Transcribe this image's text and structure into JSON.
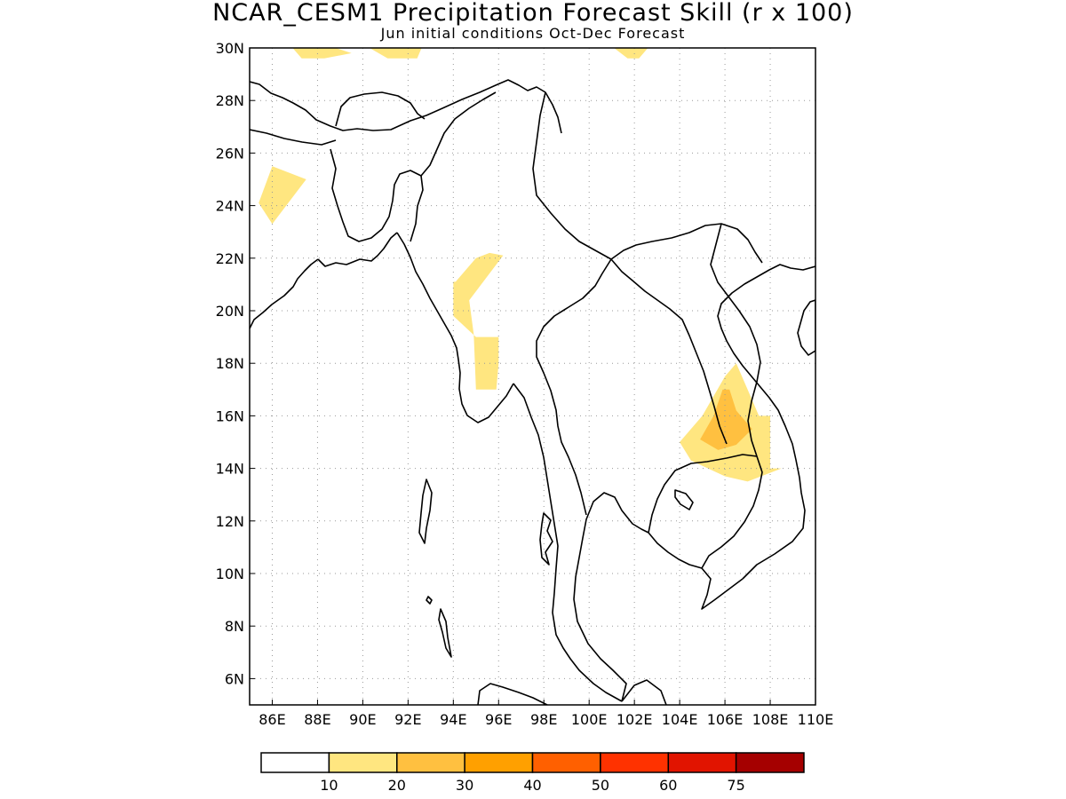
{
  "title": "NCAR_CESM1 Precipitation Forecast Skill (r x 100)",
  "subtitle": "Jun initial conditions  Oct-Dec Forecast",
  "map": {
    "lon_range": [
      85,
      110
    ],
    "lat_range": [
      5,
      30
    ],
    "lat_ticks": [
      {
        "value": 6,
        "label": "6N"
      },
      {
        "value": 8,
        "label": "8N"
      },
      {
        "value": 10,
        "label": "10N"
      },
      {
        "value": 12,
        "label": "12N"
      },
      {
        "value": 14,
        "label": "14N"
      },
      {
        "value": 16,
        "label": "16N"
      },
      {
        "value": 18,
        "label": "18N"
      },
      {
        "value": 20,
        "label": "20N"
      },
      {
        "value": 22,
        "label": "22N"
      },
      {
        "value": 24,
        "label": "24N"
      },
      {
        "value": 26,
        "label": "26N"
      },
      {
        "value": 28,
        "label": "28N"
      },
      {
        "value": 30,
        "label": "30N"
      }
    ],
    "lon_ticks": [
      {
        "value": 86,
        "label": "86E"
      },
      {
        "value": 88,
        "label": "88E"
      },
      {
        "value": 90,
        "label": "90E"
      },
      {
        "value": 92,
        "label": "92E"
      },
      {
        "value": 94,
        "label": "94E"
      },
      {
        "value": 96,
        "label": "96E"
      },
      {
        "value": 98,
        "label": "98E"
      },
      {
        "value": 100,
        "label": "100E"
      },
      {
        "value": 102,
        "label": "102E"
      },
      {
        "value": 104,
        "label": "104E"
      },
      {
        "value": 106,
        "label": "106E"
      },
      {
        "value": 108,
        "label": "108E"
      },
      {
        "value": 110,
        "label": "110E"
      }
    ],
    "grid": "dotted",
    "skill_regions": [
      {
        "level": "10-20",
        "color": "#ffe680",
        "points": [
          [
            86.9,
            30
          ],
          [
            88.8,
            30
          ],
          [
            89.5,
            29.8
          ],
          [
            88.3,
            29.6
          ],
          [
            87.3,
            29.6
          ]
        ]
      },
      {
        "level": "10-20",
        "color": "#ffe680",
        "points": [
          [
            90.3,
            30
          ],
          [
            92.6,
            30
          ],
          [
            92.4,
            29.6
          ],
          [
            91.1,
            29.6
          ]
        ]
      },
      {
        "level": "10-20",
        "color": "#ffe680",
        "points": [
          [
            101.1,
            30
          ],
          [
            102.6,
            30
          ],
          [
            102.2,
            29.6
          ],
          [
            101.7,
            29.6
          ]
        ]
      },
      {
        "level": "10-20",
        "color": "#ffe680",
        "points": [
          [
            86.0,
            25.5
          ],
          [
            87.5,
            25
          ],
          [
            86.0,
            23.3
          ],
          [
            85.4,
            24.1
          ]
        ]
      },
      {
        "level": "10-20",
        "color": "#ffe680",
        "points": [
          [
            93.3,
            21.1
          ],
          [
            94.1,
            21.1
          ],
          [
            95.0,
            22
          ],
          [
            95.6,
            22.2
          ],
          [
            96.2,
            22.1
          ],
          [
            94.7,
            20.4
          ],
          [
            94.9,
            19.1
          ],
          [
            95.0,
            17
          ],
          [
            95.9,
            17
          ],
          [
            96.0,
            18
          ],
          [
            96.6,
            18
          ],
          [
            96.0,
            18
          ],
          [
            96.0,
            19
          ],
          [
            95.0,
            19
          ],
          [
            94.0,
            19.8
          ],
          [
            94.0,
            21.1
          ]
        ]
      },
      {
        "level": "10-20",
        "color": "#ffe680",
        "points": [
          [
            104.0,
            15
          ],
          [
            105.0,
            16
          ],
          [
            106.0,
            17.5
          ],
          [
            106.5,
            18
          ],
          [
            107.0,
            17
          ],
          [
            107.5,
            16
          ],
          [
            108.0,
            16
          ],
          [
            108.0,
            14
          ],
          [
            108.5,
            14
          ],
          [
            107.0,
            13.5
          ],
          [
            106.0,
            13.7
          ],
          [
            104.5,
            14.3
          ]
        ]
      },
      {
        "level": "20-30",
        "color": "#ffc040",
        "points": [
          [
            104.9,
            15.1
          ],
          [
            105.5,
            16
          ],
          [
            105.9,
            17
          ],
          [
            106.2,
            17
          ],
          [
            106.5,
            16.2
          ],
          [
            107.2,
            15.5
          ],
          [
            106.5,
            14.9
          ],
          [
            105.7,
            14.7
          ]
        ]
      }
    ]
  },
  "colorbar": {
    "bins": [
      {
        "color": "#ffffff",
        "label": "10"
      },
      {
        "color": "#ffe680",
        "label": "20"
      },
      {
        "color": "#ffc040",
        "label": "30"
      },
      {
        "color": "#ffa000",
        "label": "40"
      },
      {
        "color": "#ff6000",
        "label": "50"
      },
      {
        "color": "#ff3200",
        "label": "60"
      },
      {
        "color": "#e11400",
        "label": "75"
      },
      {
        "color": "#a50000",
        "label": ""
      }
    ]
  }
}
